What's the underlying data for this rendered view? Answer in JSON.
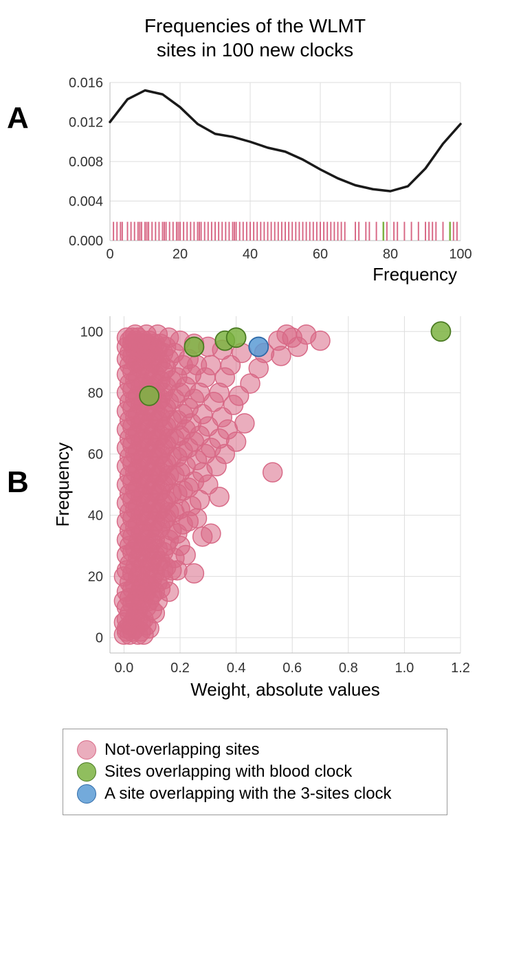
{
  "title_line1": "Frequencies of the WLMT",
  "title_line2": "sites in 100 new clocks",
  "panelA_label": "A",
  "panelB_label": "B",
  "colors": {
    "pink": "#d86a87",
    "pink_fill": "rgba(216,106,135,0.55)",
    "green": "#7cb342",
    "green_fill": "rgba(124,179,66,0.85)",
    "blue": "#5b9bd5",
    "blue_fill": "rgba(91,155,213,0.85)",
    "grid": "#dddddd",
    "axis": "#bbbbbb",
    "kde_stroke": "#1a1a1a"
  },
  "panelA": {
    "xlabel": "Frequency",
    "xlim": [
      0,
      100
    ],
    "xticks": [
      0,
      20,
      40,
      60,
      80,
      100
    ],
    "ylim": [
      0,
      0.016
    ],
    "yticks": [
      0.0,
      0.004,
      0.008,
      0.012,
      0.016
    ],
    "ytick_labels": [
      "0.000",
      "0.004",
      "0.008",
      "0.012",
      "0.016"
    ],
    "kde": [
      [
        0,
        0.012
      ],
      [
        5,
        0.0143
      ],
      [
        10,
        0.0152
      ],
      [
        15,
        0.0148
      ],
      [
        20,
        0.0135
      ],
      [
        25,
        0.0118
      ],
      [
        30,
        0.0108
      ],
      [
        35,
        0.0105
      ],
      [
        40,
        0.01
      ],
      [
        45,
        0.0094
      ],
      [
        50,
        0.009
      ],
      [
        55,
        0.0082
      ],
      [
        60,
        0.0072
      ],
      [
        65,
        0.0063
      ],
      [
        70,
        0.0056
      ],
      [
        75,
        0.0052
      ],
      [
        80,
        0.005
      ],
      [
        85,
        0.0055
      ],
      [
        90,
        0.0073
      ],
      [
        95,
        0.0098
      ],
      [
        100,
        0.0118
      ]
    ],
    "rug_height": 0.0019,
    "rug_pink": [
      1,
      2,
      3,
      3.5,
      5,
      6,
      7,
      8,
      8.5,
      9,
      10,
      10.5,
      11,
      12,
      13,
      14,
      15,
      15.5,
      16,
      17,
      18,
      19,
      19.5,
      20,
      21,
      22,
      23,
      24,
      25,
      25.5,
      26,
      27,
      28,
      29,
      30,
      31,
      32,
      33,
      34,
      35,
      35.5,
      36,
      37,
      38,
      39,
      40,
      41,
      42,
      43,
      44,
      45,
      46,
      47,
      48,
      49,
      50,
      51,
      52,
      53,
      54,
      55,
      56,
      57,
      58,
      59,
      60,
      61,
      62,
      63,
      64,
      65,
      66,
      67,
      70,
      71,
      73,
      74,
      76,
      79,
      81,
      82,
      84,
      86,
      88,
      90,
      91,
      92,
      93,
      95,
      98,
      99
    ],
    "rug_green": [
      78,
      97
    ]
  },
  "panelB": {
    "xlabel": "Weight, absolute values",
    "ylabel": "Frequency",
    "xlim": [
      -0.05,
      1.2
    ],
    "xticks": [
      0.0,
      0.2,
      0.4,
      0.6,
      0.8,
      1.0,
      1.2
    ],
    "xtick_labels": [
      "0.0",
      "0.2",
      "0.4",
      "0.6",
      "0.8",
      "1.0",
      "1.2"
    ],
    "ylim": [
      -5,
      105
    ],
    "yticks": [
      0,
      20,
      40,
      60,
      80,
      100
    ],
    "marker_radius": 14,
    "pink_points": [
      [
        0.0,
        1
      ],
      [
        0.01,
        2
      ],
      [
        0.02,
        1
      ],
      [
        0.01,
        3
      ],
      [
        0.03,
        2
      ],
      [
        0.05,
        1
      ],
      [
        0.04,
        3
      ],
      [
        0.02,
        4
      ],
      [
        0.06,
        2
      ],
      [
        0.07,
        1
      ],
      [
        0.0,
        5
      ],
      [
        0.01,
        6
      ],
      [
        0.03,
        5
      ],
      [
        0.05,
        6
      ],
      [
        0.02,
        8
      ],
      [
        0.04,
        7
      ],
      [
        0.06,
        5
      ],
      [
        0.08,
        4
      ],
      [
        0.07,
        6
      ],
      [
        0.09,
        3
      ],
      [
        0.01,
        10
      ],
      [
        0.03,
        11
      ],
      [
        0.05,
        9
      ],
      [
        0.0,
        12
      ],
      [
        0.02,
        13
      ],
      [
        0.04,
        12
      ],
      [
        0.06,
        11
      ],
      [
        0.08,
        10
      ],
      [
        0.1,
        9
      ],
      [
        0.07,
        13
      ],
      [
        0.09,
        12
      ],
      [
        0.11,
        8
      ],
      [
        0.01,
        15
      ],
      [
        0.03,
        16
      ],
      [
        0.05,
        14
      ],
      [
        0.02,
        18
      ],
      [
        0.04,
        17
      ],
      [
        0.06,
        16
      ],
      [
        0.08,
        15
      ],
      [
        0.0,
        20
      ],
      [
        0.1,
        14
      ],
      [
        0.12,
        12
      ],
      [
        0.07,
        18
      ],
      [
        0.09,
        17
      ],
      [
        0.11,
        15
      ],
      [
        0.01,
        22
      ],
      [
        0.03,
        21
      ],
      [
        0.05,
        20
      ],
      [
        0.02,
        24
      ],
      [
        0.04,
        23
      ],
      [
        0.06,
        22
      ],
      [
        0.08,
        20
      ],
      [
        0.1,
        19
      ],
      [
        0.12,
        18
      ],
      [
        0.13,
        16
      ],
      [
        0.07,
        24
      ],
      [
        0.09,
        23
      ],
      [
        0.11,
        21
      ],
      [
        0.14,
        19
      ],
      [
        0.01,
        27
      ],
      [
        0.03,
        28
      ],
      [
        0.05,
        26
      ],
      [
        0.16,
        15
      ],
      [
        0.02,
        30
      ],
      [
        0.04,
        29
      ],
      [
        0.06,
        28
      ],
      [
        0.08,
        26
      ],
      [
        0.1,
        25
      ],
      [
        0.12,
        24
      ],
      [
        0.14,
        22
      ],
      [
        0.01,
        32
      ],
      [
        0.03,
        33
      ],
      [
        0.05,
        31
      ],
      [
        0.07,
        30
      ],
      [
        0.09,
        29
      ],
      [
        0.11,
        27
      ],
      [
        0.13,
        25
      ],
      [
        0.15,
        23
      ],
      [
        0.02,
        35
      ],
      [
        0.04,
        36
      ],
      [
        0.06,
        34
      ],
      [
        0.08,
        32
      ],
      [
        0.1,
        31
      ],
      [
        0.12,
        29
      ],
      [
        0.17,
        22
      ],
      [
        0.01,
        38
      ],
      [
        0.03,
        39
      ],
      [
        0.05,
        37
      ],
      [
        0.07,
        35
      ],
      [
        0.09,
        34
      ],
      [
        0.11,
        32
      ],
      [
        0.14,
        28
      ],
      [
        0.19,
        22
      ],
      [
        0.02,
        41
      ],
      [
        0.04,
        42
      ],
      [
        0.06,
        40
      ],
      [
        0.08,
        38
      ],
      [
        0.1,
        36
      ],
      [
        0.12,
        35
      ],
      [
        0.15,
        30
      ],
      [
        0.18,
        26
      ],
      [
        0.25,
        21
      ],
      [
        0.01,
        44
      ],
      [
        0.03,
        45
      ],
      [
        0.05,
        43
      ],
      [
        0.07,
        41
      ],
      [
        0.09,
        40
      ],
      [
        0.11,
        38
      ],
      [
        0.13,
        36
      ],
      [
        0.16,
        32
      ],
      [
        0.22,
        27
      ],
      [
        0.02,
        47
      ],
      [
        0.04,
        48
      ],
      [
        0.06,
        46
      ],
      [
        0.08,
        44
      ],
      [
        0.1,
        42
      ],
      [
        0.12,
        41
      ],
      [
        0.14,
        38
      ],
      [
        0.17,
        35
      ],
      [
        0.2,
        30
      ],
      [
        0.01,
        50
      ],
      [
        0.03,
        51
      ],
      [
        0.05,
        49
      ],
      [
        0.07,
        47
      ],
      [
        0.09,
        46
      ],
      [
        0.11,
        44
      ],
      [
        0.13,
        42
      ],
      [
        0.15,
        39
      ],
      [
        0.19,
        34
      ],
      [
        0.28,
        33
      ],
      [
        0.02,
        53
      ],
      [
        0.04,
        54
      ],
      [
        0.06,
        52
      ],
      [
        0.08,
        50
      ],
      [
        0.1,
        48
      ],
      [
        0.12,
        47
      ],
      [
        0.14,
        44
      ],
      [
        0.16,
        41
      ],
      [
        0.21,
        37
      ],
      [
        0.01,
        56
      ],
      [
        0.03,
        57
      ],
      [
        0.05,
        55
      ],
      [
        0.07,
        53
      ],
      [
        0.09,
        52
      ],
      [
        0.11,
        50
      ],
      [
        0.13,
        48
      ],
      [
        0.15,
        45
      ],
      [
        0.18,
        41
      ],
      [
        0.23,
        38
      ],
      [
        0.31,
        34
      ],
      [
        0.02,
        59
      ],
      [
        0.04,
        60
      ],
      [
        0.06,
        58
      ],
      [
        0.08,
        56
      ],
      [
        0.1,
        54
      ],
      [
        0.12,
        53
      ],
      [
        0.14,
        50
      ],
      [
        0.17,
        47
      ],
      [
        0.2,
        42
      ],
      [
        0.26,
        39
      ],
      [
        0.01,
        62
      ],
      [
        0.03,
        63
      ],
      [
        0.05,
        61
      ],
      [
        0.07,
        59
      ],
      [
        0.09,
        58
      ],
      [
        0.11,
        56
      ],
      [
        0.13,
        54
      ],
      [
        0.15,
        51
      ],
      [
        0.19,
        47
      ],
      [
        0.24,
        43
      ],
      [
        0.02,
        65
      ],
      [
        0.04,
        66
      ],
      [
        0.06,
        64
      ],
      [
        0.08,
        62
      ],
      [
        0.1,
        60
      ],
      [
        0.12,
        59
      ],
      [
        0.14,
        56
      ],
      [
        0.16,
        53
      ],
      [
        0.21,
        48
      ],
      [
        0.27,
        45
      ],
      [
        0.34,
        46
      ],
      [
        0.01,
        68
      ],
      [
        0.03,
        69
      ],
      [
        0.05,
        67
      ],
      [
        0.07,
        65
      ],
      [
        0.09,
        64
      ],
      [
        0.11,
        62
      ],
      [
        0.13,
        60
      ],
      [
        0.15,
        57
      ],
      [
        0.18,
        53
      ],
      [
        0.23,
        49
      ],
      [
        0.3,
        50
      ],
      [
        0.02,
        71
      ],
      [
        0.04,
        72
      ],
      [
        0.06,
        70
      ],
      [
        0.08,
        68
      ],
      [
        0.1,
        66
      ],
      [
        0.12,
        65
      ],
      [
        0.14,
        62
      ],
      [
        0.17,
        59
      ],
      [
        0.2,
        54
      ],
      [
        0.25,
        51
      ],
      [
        0.01,
        74
      ],
      [
        0.03,
        75
      ],
      [
        0.05,
        73
      ],
      [
        0.07,
        71
      ],
      [
        0.09,
        70
      ],
      [
        0.11,
        68
      ],
      [
        0.13,
        66
      ],
      [
        0.15,
        63
      ],
      [
        0.19,
        59
      ],
      [
        0.22,
        56
      ],
      [
        0.28,
        54
      ],
      [
        0.02,
        77
      ],
      [
        0.04,
        78
      ],
      [
        0.06,
        76
      ],
      [
        0.08,
        74
      ],
      [
        0.1,
        72
      ],
      [
        0.12,
        71
      ],
      [
        0.14,
        68
      ],
      [
        0.16,
        65
      ],
      [
        0.21,
        61
      ],
      [
        0.26,
        58
      ],
      [
        0.33,
        56
      ],
      [
        0.53,
        54
      ],
      [
        0.01,
        80
      ],
      [
        0.03,
        81
      ],
      [
        0.05,
        79
      ],
      [
        0.07,
        77
      ],
      [
        0.09,
        76
      ],
      [
        0.11,
        74
      ],
      [
        0.13,
        72
      ],
      [
        0.15,
        69
      ],
      [
        0.18,
        65
      ],
      [
        0.23,
        62
      ],
      [
        0.29,
        60
      ],
      [
        0.02,
        83
      ],
      [
        0.04,
        84
      ],
      [
        0.06,
        82
      ],
      [
        0.08,
        80
      ],
      [
        0.1,
        78
      ],
      [
        0.12,
        77
      ],
      [
        0.14,
        74
      ],
      [
        0.17,
        71
      ],
      [
        0.2,
        66
      ],
      [
        0.25,
        64
      ],
      [
        0.31,
        62
      ],
      [
        0.36,
        60
      ],
      [
        0.01,
        86
      ],
      [
        0.03,
        87
      ],
      [
        0.05,
        85
      ],
      [
        0.07,
        83
      ],
      [
        0.09,
        82
      ],
      [
        0.11,
        80
      ],
      [
        0.13,
        78
      ],
      [
        0.15,
        75
      ],
      [
        0.19,
        71
      ],
      [
        0.22,
        68
      ],
      [
        0.27,
        66
      ],
      [
        0.34,
        65
      ],
      [
        0.4,
        64
      ],
      [
        0.02,
        89
      ],
      [
        0.04,
        90
      ],
      [
        0.06,
        88
      ],
      [
        0.08,
        86
      ],
      [
        0.1,
        84
      ],
      [
        0.12,
        83
      ],
      [
        0.14,
        80
      ],
      [
        0.16,
        77
      ],
      [
        0.21,
        73
      ],
      [
        0.24,
        70
      ],
      [
        0.3,
        69
      ],
      [
        0.37,
        68
      ],
      [
        0.01,
        91
      ],
      [
        0.03,
        92
      ],
      [
        0.05,
        90
      ],
      [
        0.07,
        89
      ],
      [
        0.09,
        88
      ],
      [
        0.11,
        86
      ],
      [
        0.13,
        84
      ],
      [
        0.15,
        82
      ],
      [
        0.18,
        78
      ],
      [
        0.23,
        75
      ],
      [
        0.28,
        73
      ],
      [
        0.35,
        72
      ],
      [
        0.43,
        70
      ],
      [
        0.02,
        93
      ],
      [
        0.04,
        94
      ],
      [
        0.06,
        93
      ],
      [
        0.08,
        91
      ],
      [
        0.1,
        90
      ],
      [
        0.12,
        89
      ],
      [
        0.14,
        87
      ],
      [
        0.17,
        84
      ],
      [
        0.2,
        80
      ],
      [
        0.25,
        78
      ],
      [
        0.32,
        77
      ],
      [
        0.39,
        76
      ],
      [
        0.01,
        95
      ],
      [
        0.03,
        96
      ],
      [
        0.05,
        95
      ],
      [
        0.07,
        94
      ],
      [
        0.09,
        93
      ],
      [
        0.11,
        92
      ],
      [
        0.13,
        90
      ],
      [
        0.15,
        88
      ],
      [
        0.19,
        85
      ],
      [
        0.22,
        82
      ],
      [
        0.27,
        80
      ],
      [
        0.34,
        80
      ],
      [
        0.41,
        79
      ],
      [
        0.02,
        97
      ],
      [
        0.04,
        97
      ],
      [
        0.06,
        96
      ],
      [
        0.08,
        96
      ],
      [
        0.1,
        95
      ],
      [
        0.12,
        94
      ],
      [
        0.14,
        93
      ],
      [
        0.16,
        91
      ],
      [
        0.21,
        89
      ],
      [
        0.24,
        86
      ],
      [
        0.29,
        85
      ],
      [
        0.36,
        85
      ],
      [
        0.45,
        83
      ],
      [
        0.01,
        98
      ],
      [
        0.03,
        98
      ],
      [
        0.05,
        98
      ],
      [
        0.07,
        97
      ],
      [
        0.09,
        97
      ],
      [
        0.11,
        96
      ],
      [
        0.13,
        96
      ],
      [
        0.15,
        95
      ],
      [
        0.18,
        93
      ],
      [
        0.23,
        91
      ],
      [
        0.26,
        89
      ],
      [
        0.31,
        89
      ],
      [
        0.38,
        89
      ],
      [
        0.48,
        88
      ],
      [
        0.04,
        99
      ],
      [
        0.08,
        99
      ],
      [
        0.12,
        99
      ],
      [
        0.16,
        98
      ],
      [
        0.2,
        97
      ],
      [
        0.25,
        96
      ],
      [
        0.3,
        95
      ],
      [
        0.35,
        94
      ],
      [
        0.42,
        93
      ],
      [
        0.5,
        93
      ],
      [
        0.56,
        92
      ],
      [
        0.62,
        95
      ],
      [
        0.55,
        97
      ],
      [
        0.6,
        98
      ],
      [
        0.7,
        97
      ],
      [
        0.65,
        99
      ],
      [
        0.58,
        99
      ]
    ],
    "green_points": [
      [
        0.09,
        79
      ],
      [
        0.25,
        95
      ],
      [
        0.36,
        97
      ],
      [
        0.4,
        98
      ],
      [
        1.13,
        100
      ]
    ],
    "blue_points": [
      [
        0.48,
        95
      ]
    ]
  },
  "legend": {
    "items": [
      {
        "color_key": "pink",
        "label": "Not-overlapping sites"
      },
      {
        "color_key": "green",
        "label": "Sites overlapping with blood clock"
      },
      {
        "color_key": "blue",
        "label": "A site overlapping with the 3-sites clock"
      }
    ]
  }
}
